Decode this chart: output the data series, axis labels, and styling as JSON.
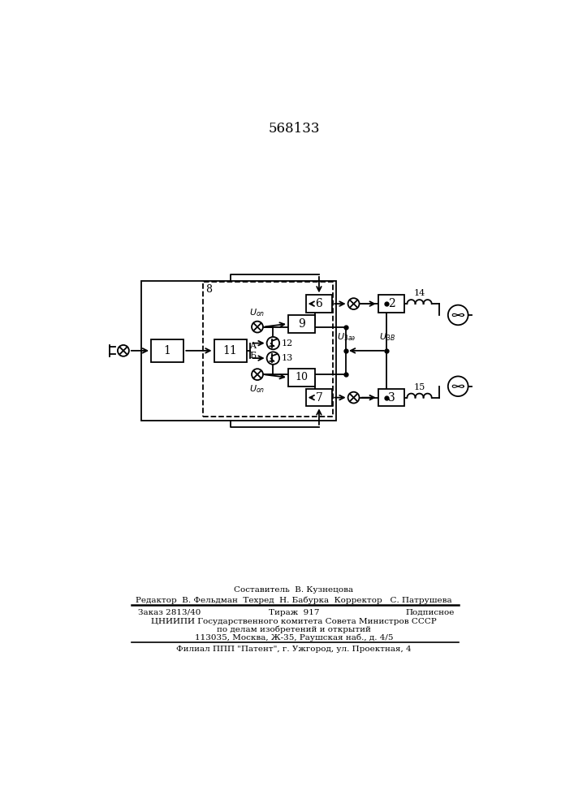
{
  "title": "568133",
  "bg_color": "#ffffff",
  "footer_lines": [
    "Составитель  В. Кузнецова",
    "Редактор  В. Фельдман  Техред  Н. Бабурка  Корректор   С. Патрушева",
    "Заказ 2813/40          Тираж  917          Подписное",
    "ЦНИИПИ Государственного комитета Совета Министров СССР",
    "по делам изобретений и открытий",
    "113035, Москва, Ж-35, Раушская наб., д. 4/5",
    "Филиал ППП \"Патент\", г. Ужгород, ул. Проектная, 4"
  ]
}
